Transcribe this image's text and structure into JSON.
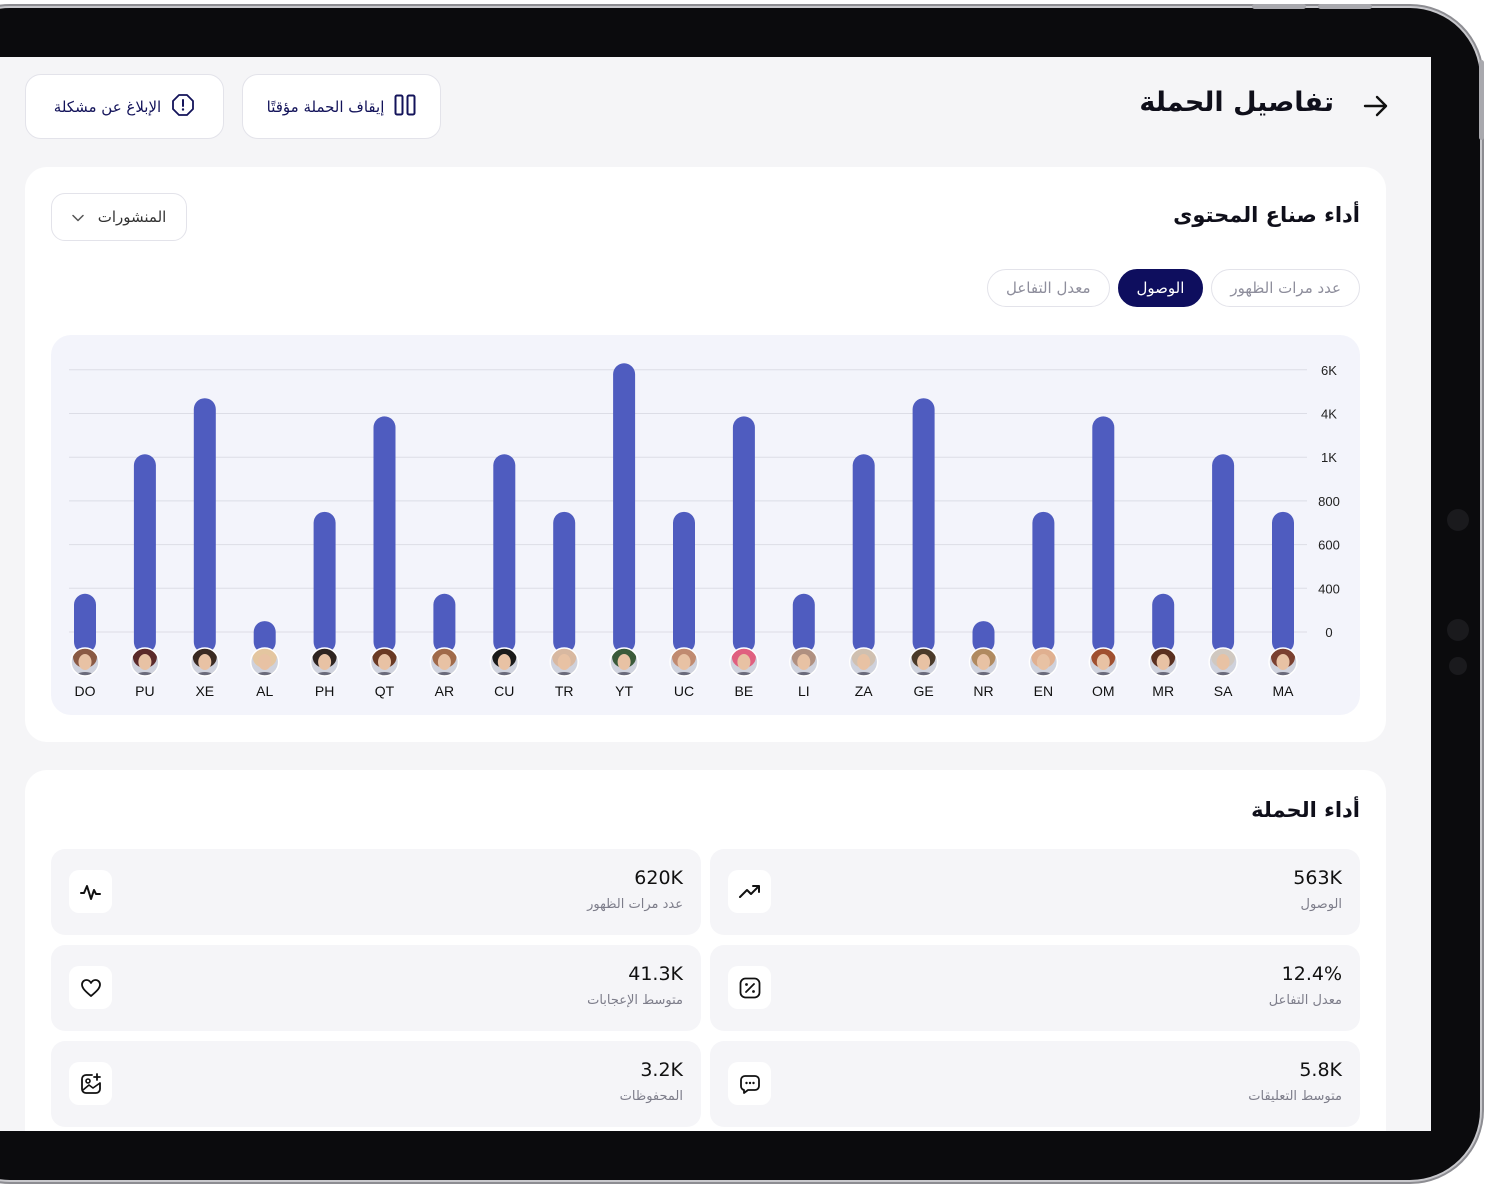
{
  "header": {
    "title": "تفاصيل الحملة",
    "pause_button": "إيقاف الحملة مؤقتًا",
    "report_button": "الإبلاغ عن مشكلة"
  },
  "creators": {
    "title": "أداء صناع المحتوى",
    "dropdown_value": "المنشورات",
    "tabs": [
      {
        "label": "عدد مرات الظهور",
        "active": false
      },
      {
        "label": "الوصول",
        "active": true
      },
      {
        "label": "معدل التفاعل",
        "active": false
      }
    ]
  },
  "chart_data": {
    "type": "bar",
    "categories": [
      "DO",
      "PU",
      "XE",
      "AL",
      "PH",
      "QT",
      "AR",
      "CU",
      "TR",
      "YT",
      "UC",
      "BE",
      "LI",
      "ZA",
      "GE",
      "NR",
      "EN",
      "OM",
      "MR",
      "SA",
      "MA"
    ],
    "values": [
      350,
      1200,
      4700,
      100,
      750,
      3800,
      350,
      1200,
      750,
      6300,
      750,
      3800,
      350,
      1200,
      4700,
      100,
      750,
      3800,
      350,
      1200,
      750
    ],
    "y_ticks": [
      "0",
      "400",
      "600",
      "800",
      "1K",
      "4K",
      "6K"
    ],
    "y_tick_values": [
      0,
      400,
      600,
      800,
      1000,
      4000,
      6000
    ],
    "y_axis_side": "right",
    "bar_color": "#4f5cbf",
    "grid": true
  },
  "campaign": {
    "title": "أداء الحملة",
    "stats": [
      {
        "value": "563K",
        "label": "الوصول",
        "icon": "trending-up-icon"
      },
      {
        "value": "620K",
        "label": "عدد مرات الظهور",
        "icon": "activity-icon"
      },
      {
        "value": "12.4%",
        "label": "معدل التفاعل",
        "icon": "percent-icon"
      },
      {
        "value": "41.3K",
        "label": "متوسط الإعجابات",
        "icon": "heart-icon"
      },
      {
        "value": "5.8K",
        "label": "متوسط التعليقات",
        "icon": "comment-icon"
      },
      {
        "value": "3.2K",
        "label": "المحفوظات",
        "icon": "saved-image-icon"
      }
    ]
  },
  "colors": {
    "accent": "#0e0e5e",
    "bar": "#4f5cbf",
    "chart_bg": "#f3f4fb"
  }
}
